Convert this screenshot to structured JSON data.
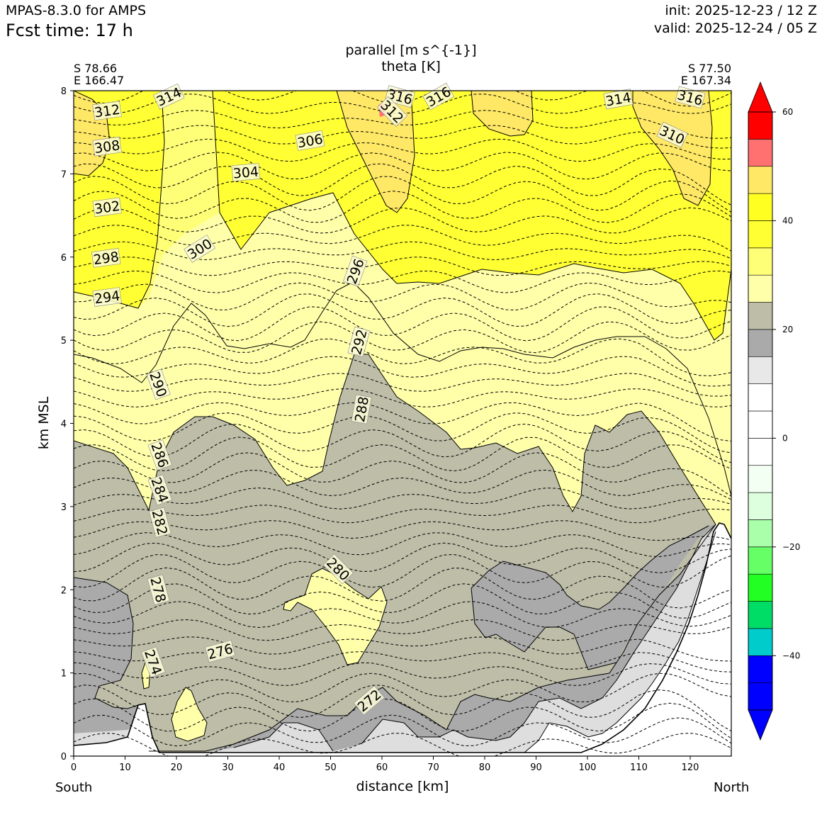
{
  "header": {
    "model": "MPAS-8.3.0 for AMPS",
    "fcst": "Fcst time:   17 h",
    "init": "init: 2025-12-23 / 12 Z",
    "valid": "valid: 2025-12-24 / 05 Z"
  },
  "corners": {
    "left_lat": "S 78.66",
    "left_lon": "E 166.47",
    "right_lat": "S 77.50",
    "right_lon": "E 167.34"
  },
  "chart_data": {
    "type": "contour cross-section",
    "title_line1": "parallel [m s^{-1}]",
    "title_line2": "theta [K]",
    "xlabel": "distance [km]",
    "ylabel": "km MSL",
    "x_left_label": "South",
    "x_right_label": "North",
    "xlim": [
      0,
      128
    ],
    "ylim": [
      0,
      8
    ],
    "xticks": [
      0,
      10,
      20,
      30,
      40,
      50,
      60,
      70,
      80,
      90,
      100,
      110,
      120
    ],
    "yticks": [
      0,
      1,
      2,
      3,
      4,
      5,
      6,
      7,
      8
    ],
    "colorbar": {
      "bounds": [
        -50,
        -45,
        -40,
        -35,
        -30,
        -25,
        -20,
        -15,
        -10,
        -5,
        0,
        5,
        10,
        15,
        20,
        25,
        30,
        35,
        40,
        45,
        50,
        55,
        60
      ],
      "colors": [
        "#0000ff",
        "#0000ff",
        "#00cccc",
        "#00dd66",
        "#22ff22",
        "#66ff66",
        "#aaffaa",
        "#ddffdd",
        "#f2fff2",
        "#ffffff",
        "#ffffff",
        "#ffffff",
        "#e8e8e8",
        "#aaaaaa",
        "#bdbda8",
        "#ffffaa",
        "#ffff77",
        "#ffff33",
        "#ffff22",
        "#ffe866",
        "#ff7070",
        "#ff0000"
      ],
      "ticks": [
        60,
        40,
        20,
        0,
        -20,
        -40
      ],
      "tick_labels": [
        "60",
        "40",
        "20",
        "0",
        "−20",
        "−40"
      ]
    },
    "theta_labels": [
      {
        "text": "312",
        "x": 6.5,
        "y": 7.76,
        "rot": -8
      },
      {
        "text": "308",
        "x": 6.5,
        "y": 7.33,
        "rot": -8
      },
      {
        "text": "302",
        "x": 6.5,
        "y": 6.6,
        "rot": -8
      },
      {
        "text": "298",
        "x": 6.3,
        "y": 5.99,
        "rot": -8
      },
      {
        "text": "294",
        "x": 6.5,
        "y": 5.52,
        "rot": -8
      },
      {
        "text": "314",
        "x": 18.5,
        "y": 7.93,
        "rot": -25
      },
      {
        "text": "304",
        "x": 33.5,
        "y": 7.02,
        "rot": -5
      },
      {
        "text": "306",
        "x": 46.0,
        "y": 7.4,
        "rot": -10
      },
      {
        "text": "300",
        "x": 24.5,
        "y": 6.1,
        "rot": -32
      },
      {
        "text": "296",
        "x": 54.8,
        "y": 5.83,
        "rot": -70
      },
      {
        "text": "292",
        "x": 55.5,
        "y": 4.98,
        "rot": -75
      },
      {
        "text": "288",
        "x": 56.0,
        "y": 4.17,
        "rot": -80
      },
      {
        "text": "290",
        "x": 16.5,
        "y": 4.47,
        "rot": 70
      },
      {
        "text": "286",
        "x": 16.8,
        "y": 3.62,
        "rot": 70
      },
      {
        "text": "284",
        "x": 16.8,
        "y": 3.2,
        "rot": 70
      },
      {
        "text": "282",
        "x": 16.8,
        "y": 2.81,
        "rot": 75
      },
      {
        "text": "278",
        "x": 16.5,
        "y": 2.0,
        "rot": 75
      },
      {
        "text": "274",
        "x": 15.5,
        "y": 1.13,
        "rot": 70
      },
      {
        "text": "276",
        "x": 28.5,
        "y": 1.26,
        "rot": -15
      },
      {
        "text": "280",
        "x": 51.5,
        "y": 2.25,
        "rot": 45
      },
      {
        "text": "272",
        "x": 57.5,
        "y": 0.67,
        "rot": -40
      },
      {
        "text": "316",
        "x": 63.5,
        "y": 7.93,
        "rot": 15
      },
      {
        "text": "312",
        "x": 62.0,
        "y": 7.75,
        "rot": 45
      },
      {
        "text": "316",
        "x": 71.0,
        "y": 7.93,
        "rot": -30
      },
      {
        "text": "314",
        "x": 106.0,
        "y": 7.9,
        "rot": -10
      },
      {
        "text": "310",
        "x": 116.5,
        "y": 7.47,
        "rot": 25
      },
      {
        "text": "316",
        "x": 120.0,
        "y": 7.92,
        "rot": 15
      }
    ]
  }
}
